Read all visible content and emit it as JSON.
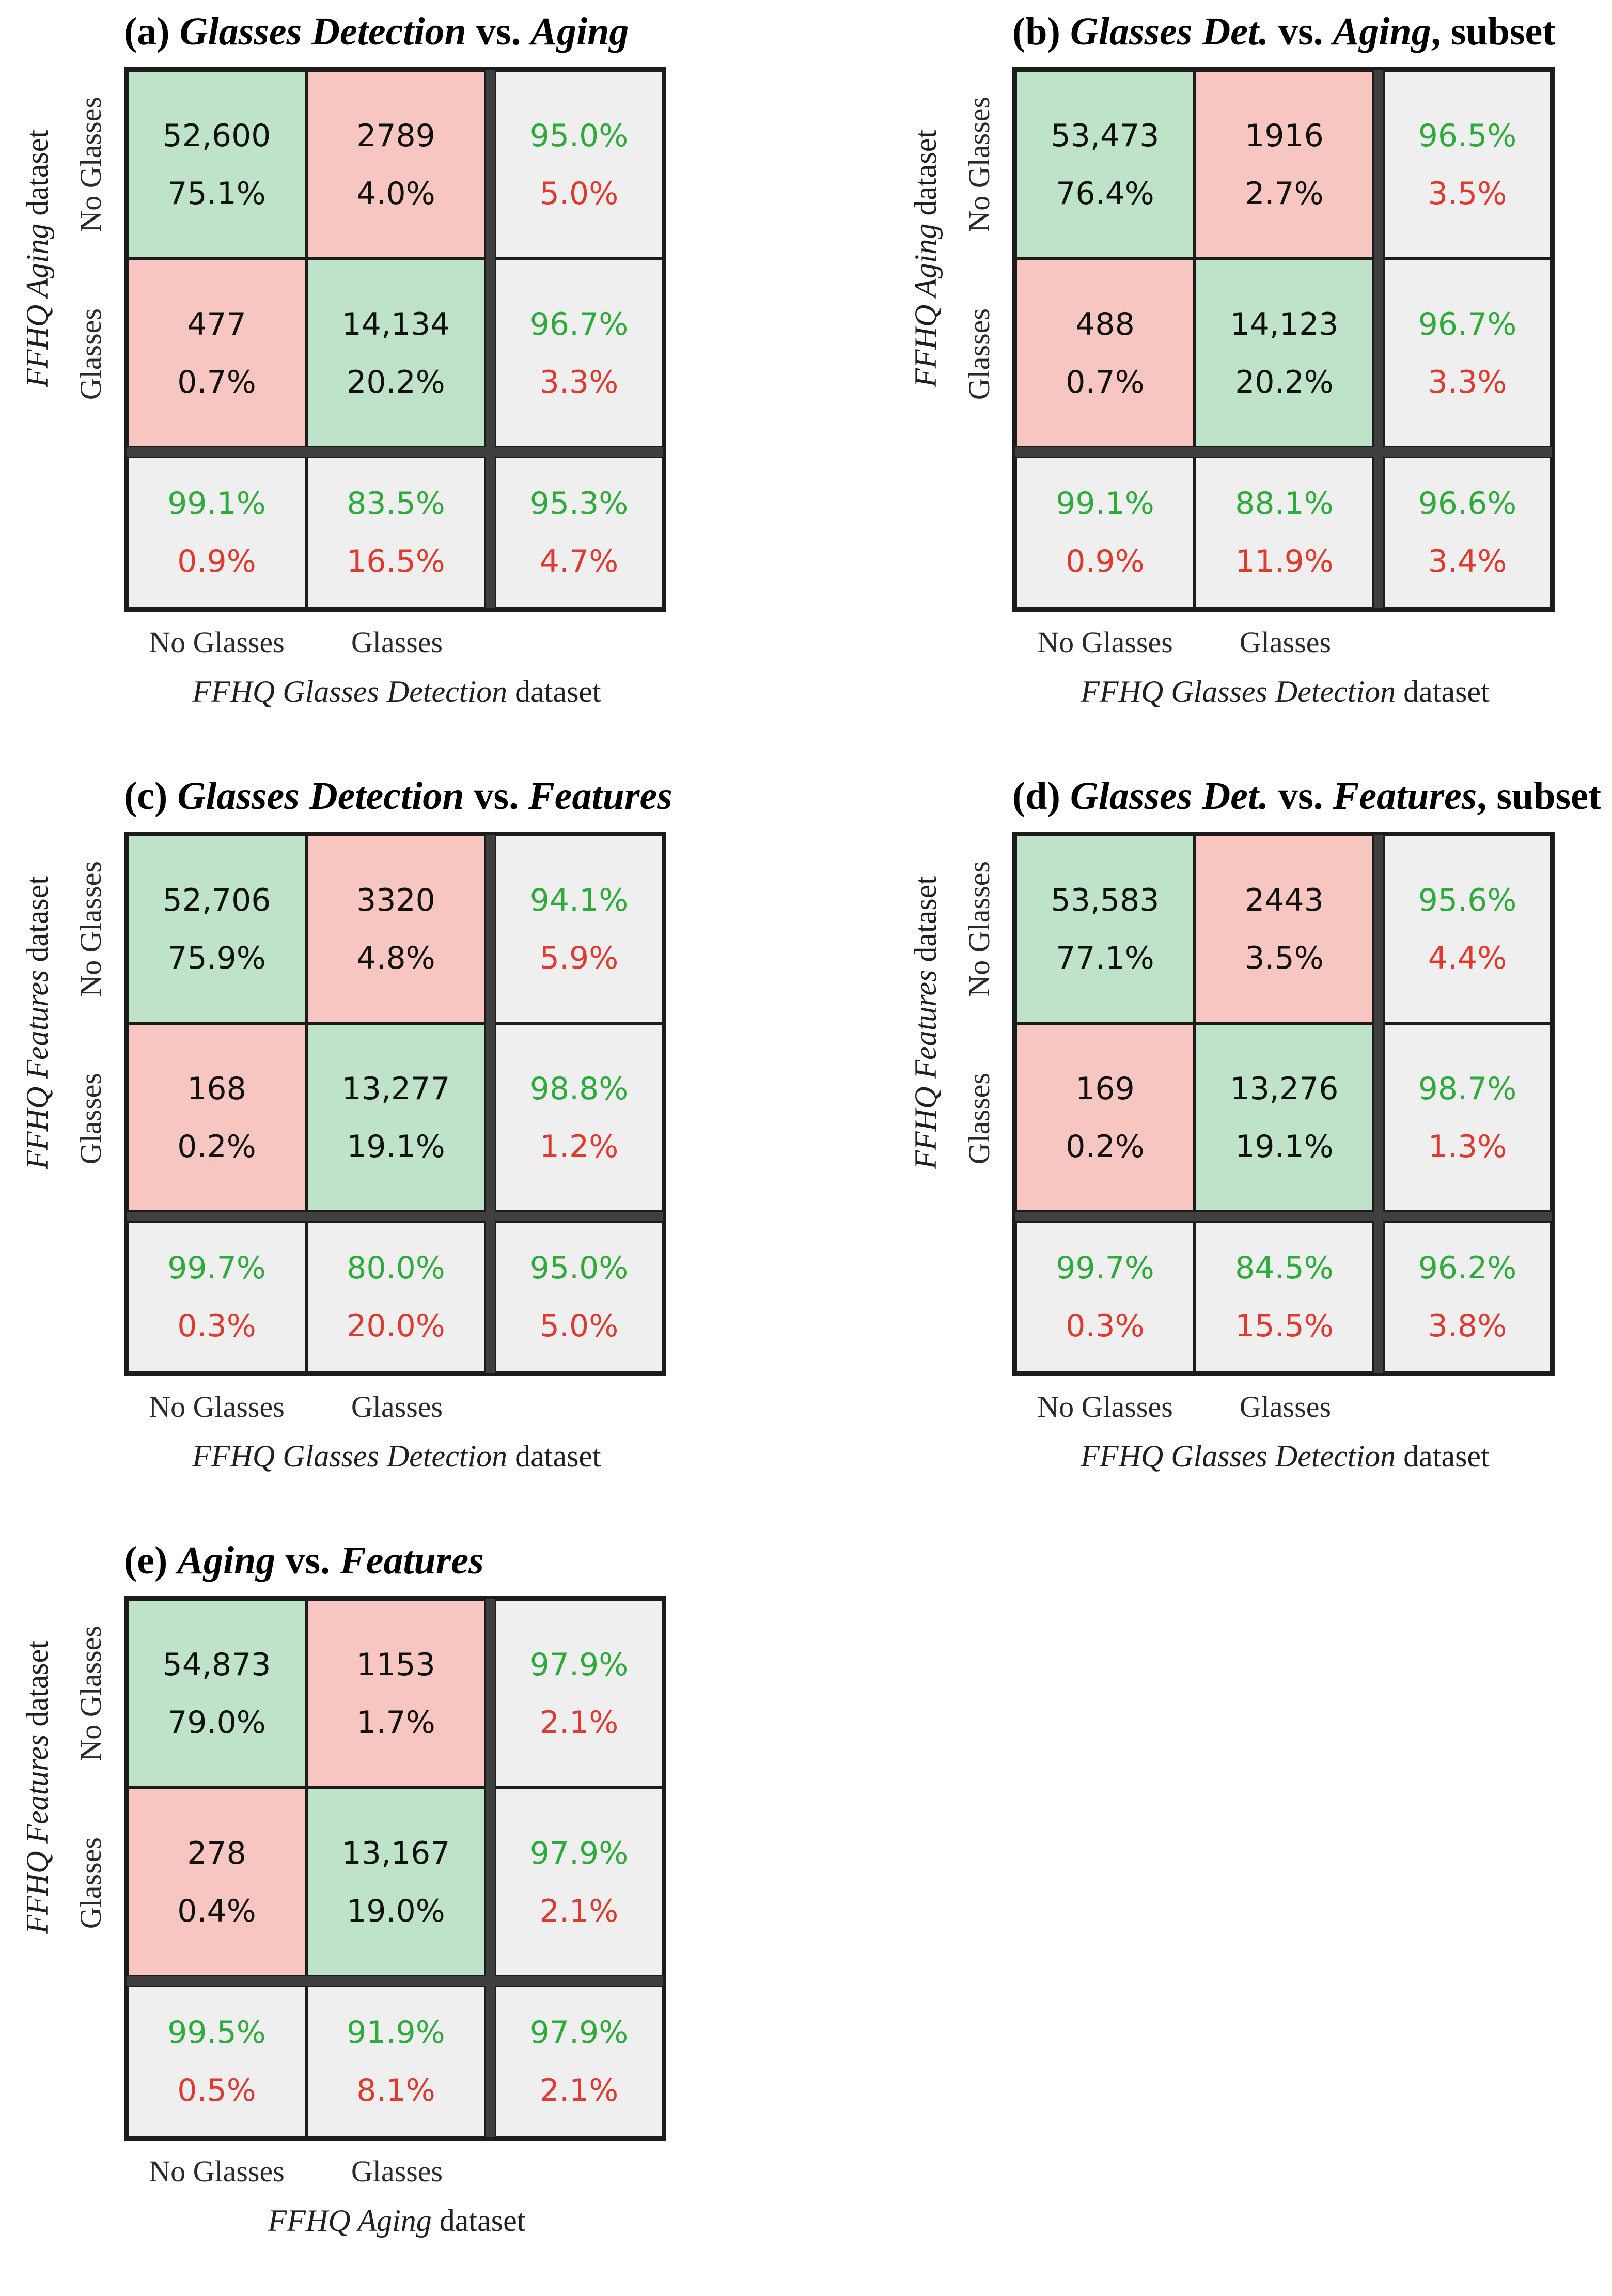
{
  "colors": {
    "agree_cell_bg": "#bee3c8",
    "disagree_cell_bg": "#f8c6c0",
    "summary_cell_bg": "#efefef",
    "agree_text": "#2dac3c",
    "disagree_text": "#e03a2f",
    "thick_separator": "#3f3f3f",
    "cell_border": "#1c1c1c"
  },
  "panels": [
    {
      "id": "a",
      "title_label": "(a) ",
      "title_name1": "Glasses Detection",
      "title_mid": " vs. ",
      "title_name2": "Aging",
      "title_suffix": "",
      "y_dataset_italic": "FFHQ Aging",
      "y_dataset_rest": " dataset",
      "x_dataset_italic": "FFHQ Glasses Detection",
      "x_dataset_rest": " dataset",
      "y_ticks": [
        "No Glasses",
        "Glasses"
      ],
      "x_ticks": [
        "No Glasses",
        "Glasses"
      ],
      "cells": {
        "r1c1_count": "52,600",
        "r1c1_pct": "75.1%",
        "r1c2_count": "2789",
        "r1c2_pct": "4.0%",
        "r1s_good": "95.0%",
        "r1s_bad": "5.0%",
        "r2c1_count": "477",
        "r2c1_pct": "0.7%",
        "r2c2_count": "14,134",
        "r2c2_pct": "20.2%",
        "r2s_good": "96.7%",
        "r2s_bad": "3.3%",
        "c1s_good": "99.1%",
        "c1s_bad": "0.9%",
        "c2s_good": "83.5%",
        "c2s_bad": "16.5%",
        "tot_good": "95.3%",
        "tot_bad": "4.7%"
      }
    },
    {
      "id": "b",
      "title_label": "(b) ",
      "title_name1": "Glasses Det.",
      "title_mid": " vs. ",
      "title_name2": "Aging",
      "title_suffix": ", subset",
      "y_dataset_italic": "FFHQ Aging",
      "y_dataset_rest": " dataset",
      "x_dataset_italic": "FFHQ Glasses Detection",
      "x_dataset_rest": " dataset",
      "y_ticks": [
        "No Glasses",
        "Glasses"
      ],
      "x_ticks": [
        "No Glasses",
        "Glasses"
      ],
      "cells": {
        "r1c1_count": "53,473",
        "r1c1_pct": "76.4%",
        "r1c2_count": "1916",
        "r1c2_pct": "2.7%",
        "r1s_good": "96.5%",
        "r1s_bad": "3.5%",
        "r2c1_count": "488",
        "r2c1_pct": "0.7%",
        "r2c2_count": "14,123",
        "r2c2_pct": "20.2%",
        "r2s_good": "96.7%",
        "r2s_bad": "3.3%",
        "c1s_good": "99.1%",
        "c1s_bad": "0.9%",
        "c2s_good": "88.1%",
        "c2s_bad": "11.9%",
        "tot_good": "96.6%",
        "tot_bad": "3.4%"
      }
    },
    {
      "id": "c",
      "title_label": "(c) ",
      "title_name1": "Glasses Detection",
      "title_mid": " vs. ",
      "title_name2": "Features",
      "title_suffix": "",
      "y_dataset_italic": "FFHQ Features",
      "y_dataset_rest": " dataset",
      "x_dataset_italic": "FFHQ Glasses Detection",
      "x_dataset_rest": " dataset",
      "y_ticks": [
        "No Glasses",
        "Glasses"
      ],
      "x_ticks": [
        "No Glasses",
        "Glasses"
      ],
      "cells": {
        "r1c1_count": "52,706",
        "r1c1_pct": "75.9%",
        "r1c2_count": "3320",
        "r1c2_pct": "4.8%",
        "r1s_good": "94.1%",
        "r1s_bad": "5.9%",
        "r2c1_count": "168",
        "r2c1_pct": "0.2%",
        "r2c2_count": "13,277",
        "r2c2_pct": "19.1%",
        "r2s_good": "98.8%",
        "r2s_bad": "1.2%",
        "c1s_good": "99.7%",
        "c1s_bad": "0.3%",
        "c2s_good": "80.0%",
        "c2s_bad": "20.0%",
        "tot_good": "95.0%",
        "tot_bad": "5.0%"
      }
    },
    {
      "id": "d",
      "title_label": "(d) ",
      "title_name1": "Glasses Det.",
      "title_mid": " vs. ",
      "title_name2": "Features",
      "title_suffix": ", subset",
      "y_dataset_italic": "FFHQ Features",
      "y_dataset_rest": " dataset",
      "x_dataset_italic": "FFHQ Glasses Detection",
      "x_dataset_rest": " dataset",
      "y_ticks": [
        "No Glasses",
        "Glasses"
      ],
      "x_ticks": [
        "No Glasses",
        "Glasses"
      ],
      "cells": {
        "r1c1_count": "53,583",
        "r1c1_pct": "77.1%",
        "r1c2_count": "2443",
        "r1c2_pct": "3.5%",
        "r1s_good": "95.6%",
        "r1s_bad": "4.4%",
        "r2c1_count": "169",
        "r2c1_pct": "0.2%",
        "r2c2_count": "13,276",
        "r2c2_pct": "19.1%",
        "r2s_good": "98.7%",
        "r2s_bad": "1.3%",
        "c1s_good": "99.7%",
        "c1s_bad": "0.3%",
        "c2s_good": "84.5%",
        "c2s_bad": "15.5%",
        "tot_good": "96.2%",
        "tot_bad": "3.8%"
      }
    },
    {
      "id": "e",
      "title_label": "(e) ",
      "title_name1": "Aging",
      "title_mid": " vs. ",
      "title_name2": "Features",
      "title_suffix": "",
      "y_dataset_italic": "FFHQ Features",
      "y_dataset_rest": " dataset",
      "x_dataset_italic": "FFHQ Aging",
      "x_dataset_rest": " dataset",
      "y_ticks": [
        "No Glasses",
        "Glasses"
      ],
      "x_ticks": [
        "No Glasses",
        "Glasses"
      ],
      "cells": {
        "r1c1_count": "54,873",
        "r1c1_pct": "79.0%",
        "r1c2_count": "1153",
        "r1c2_pct": "1.7%",
        "r1s_good": "97.9%",
        "r1s_bad": "2.1%",
        "r2c1_count": "278",
        "r2c1_pct": "0.4%",
        "r2c2_count": "13,167",
        "r2c2_pct": "19.0%",
        "r2s_good": "97.9%",
        "r2s_bad": "2.1%",
        "c1s_good": "99.5%",
        "c1s_bad": "0.5%",
        "c2s_good": "91.9%",
        "c2s_bad": "8.1%",
        "tot_good": "97.9%",
        "tot_bad": "2.1%"
      }
    }
  ],
  "chart_data": [
    {
      "type": "heatmap",
      "title": "(a) Glasses Detection vs. Aging",
      "xlabel": "FFHQ Glasses Detection dataset",
      "ylabel": "FFHQ Aging dataset",
      "categories": [
        "No Glasses",
        "Glasses"
      ],
      "counts": [
        [
          52600,
          2789
        ],
        [
          477,
          14134
        ]
      ],
      "count_pct": [
        [
          75.1,
          4.0
        ],
        [
          0.7,
          20.2
        ]
      ],
      "row_summary_pct": [
        [
          95.0,
          5.0
        ],
        [
          96.7,
          3.3
        ]
      ],
      "col_summary_pct": [
        [
          99.1,
          0.9
        ],
        [
          83.5,
          16.5
        ]
      ],
      "overall_pct": [
        95.3,
        4.7
      ]
    },
    {
      "type": "heatmap",
      "title": "(b) Glasses Det. vs. Aging, subset",
      "xlabel": "FFHQ Glasses Detection dataset",
      "ylabel": "FFHQ Aging dataset",
      "categories": [
        "No Glasses",
        "Glasses"
      ],
      "counts": [
        [
          53473,
          1916
        ],
        [
          488,
          14123
        ]
      ],
      "count_pct": [
        [
          76.4,
          2.7
        ],
        [
          0.7,
          20.2
        ]
      ],
      "row_summary_pct": [
        [
          96.5,
          3.5
        ],
        [
          96.7,
          3.3
        ]
      ],
      "col_summary_pct": [
        [
          99.1,
          0.9
        ],
        [
          88.1,
          11.9
        ]
      ],
      "overall_pct": [
        96.6,
        3.4
      ]
    },
    {
      "type": "heatmap",
      "title": "(c) Glasses Detection vs. Features",
      "xlabel": "FFHQ Glasses Detection dataset",
      "ylabel": "FFHQ Features dataset",
      "categories": [
        "No Glasses",
        "Glasses"
      ],
      "counts": [
        [
          52706,
          3320
        ],
        [
          168,
          13277
        ]
      ],
      "count_pct": [
        [
          75.9,
          4.8
        ],
        [
          0.2,
          19.1
        ]
      ],
      "row_summary_pct": [
        [
          94.1,
          5.9
        ],
        [
          98.8,
          1.2
        ]
      ],
      "col_summary_pct": [
        [
          99.7,
          0.3
        ],
        [
          80.0,
          20.0
        ]
      ],
      "overall_pct": [
        95.0,
        5.0
      ]
    },
    {
      "type": "heatmap",
      "title": "(d) Glasses Det. vs. Features, subset",
      "xlabel": "FFHQ Glasses Detection dataset",
      "ylabel": "FFHQ Features dataset",
      "categories": [
        "No Glasses",
        "Glasses"
      ],
      "counts": [
        [
          53583,
          2443
        ],
        [
          169,
          13276
        ]
      ],
      "count_pct": [
        [
          77.1,
          3.5
        ],
        [
          0.2,
          19.1
        ]
      ],
      "row_summary_pct": [
        [
          95.6,
          4.4
        ],
        [
          98.7,
          1.3
        ]
      ],
      "col_summary_pct": [
        [
          99.7,
          0.3
        ],
        [
          84.5,
          15.5
        ]
      ],
      "overall_pct": [
        96.2,
        3.8
      ]
    },
    {
      "type": "heatmap",
      "title": "(e) Aging vs. Features",
      "xlabel": "FFHQ Aging dataset",
      "ylabel": "FFHQ Features dataset",
      "categories": [
        "No Glasses",
        "Glasses"
      ],
      "counts": [
        [
          54873,
          1153
        ],
        [
          278,
          13167
        ]
      ],
      "count_pct": [
        [
          79.0,
          1.7
        ],
        [
          0.4,
          19.0
        ]
      ],
      "row_summary_pct": [
        [
          97.9,
          2.1
        ],
        [
          97.9,
          2.1
        ]
      ],
      "col_summary_pct": [
        [
          99.5,
          0.5
        ],
        [
          91.9,
          8.1
        ]
      ],
      "overall_pct": [
        97.9,
        2.1
      ]
    }
  ]
}
